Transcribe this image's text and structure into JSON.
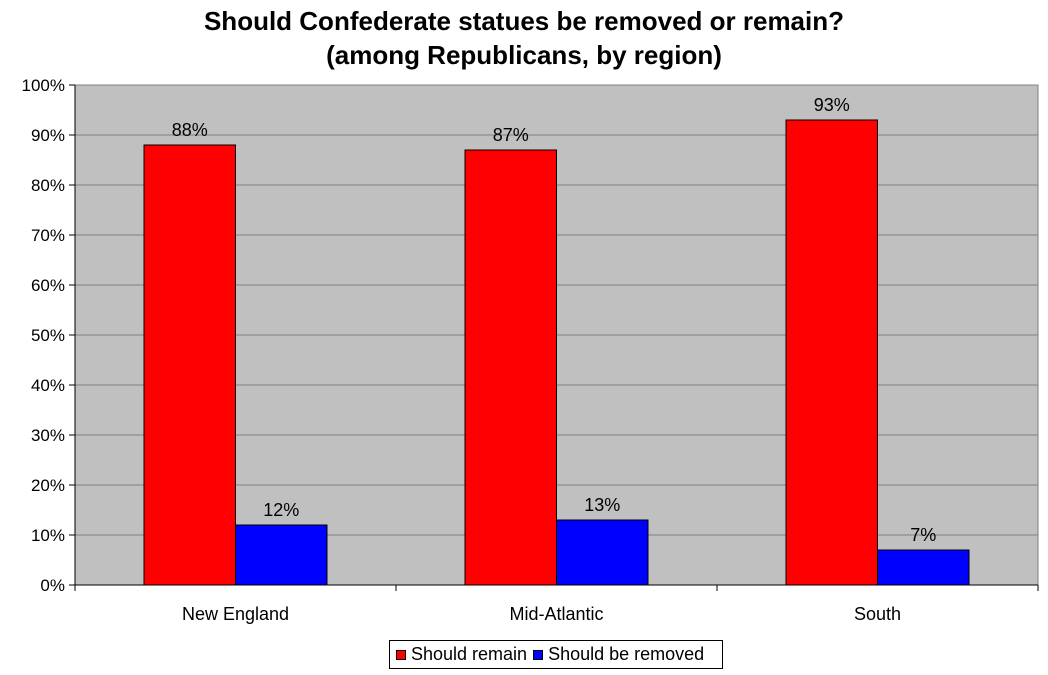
{
  "chart_data": {
    "type": "bar",
    "title_lines": [
      "Should Confederate statues be removed or remain?",
      "(among Republicans, by region)"
    ],
    "categories": [
      "New England",
      "Mid-Atlantic",
      "South"
    ],
    "series": [
      {
        "name": "Should remain",
        "color": "#ff0000",
        "values": [
          88,
          87,
          93
        ],
        "labels": [
          "88%",
          "87%",
          "93%"
        ]
      },
      {
        "name": "Should be removed",
        "color": "#0000ff",
        "values": [
          12,
          13,
          7
        ],
        "labels": [
          "12%",
          "13%",
          "7%"
        ]
      }
    ],
    "ylim": [
      0,
      100
    ],
    "yticks": [
      0,
      10,
      20,
      30,
      40,
      50,
      60,
      70,
      80,
      90,
      100
    ],
    "ytick_labels": [
      "0%",
      "10%",
      "20%",
      "30%",
      "40%",
      "50%",
      "60%",
      "70%",
      "80%",
      "90%",
      "100%"
    ],
    "grid": true,
    "plot_background": "#c0c0c0",
    "legend_position": "bottom"
  }
}
